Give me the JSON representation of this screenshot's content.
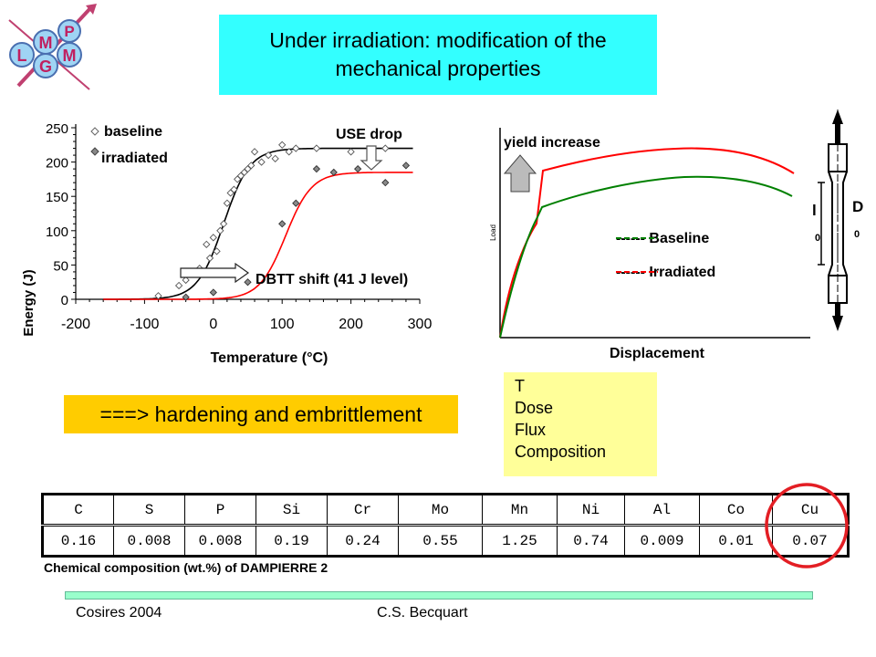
{
  "title": {
    "line1": "Under irradiation: modification of the",
    "line2": "mechanical properties"
  },
  "logo": {
    "letters": [
      "L",
      "M",
      "G",
      "P",
      "M"
    ]
  },
  "charpy_chart": {
    "ylabel": "Energy (J)",
    "xlabel": "Temperature (°C)",
    "y_ticks": [
      "0",
      "50",
      "100",
      "150",
      "200",
      "250"
    ],
    "x_ticks": [
      "-200",
      "-100",
      "0",
      "100",
      "200",
      "300"
    ],
    "legend": [
      "baseline",
      "irradiated"
    ],
    "annotation_use_drop": "USE drop",
    "annotation_dbtt": "DBTT shift (41 J level)"
  },
  "chart_data": [
    {
      "type": "scatter",
      "xlabel": "Temperature (°C)",
      "ylabel": "Energy (J)",
      "xlim": [
        -200,
        300
      ],
      "ylim": [
        0,
        250
      ],
      "grid": false,
      "legend_placement": "top-left",
      "series": [
        {
          "name": "baseline",
          "points": [
            [
              -80,
              5
            ],
            [
              -50,
              20
            ],
            [
              -40,
              28
            ],
            [
              -30,
              38
            ],
            [
              -20,
              45
            ],
            [
              -10,
              80
            ],
            [
              -5,
              60
            ],
            [
              0,
              90
            ],
            [
              5,
              70
            ],
            [
              10,
              100
            ],
            [
              15,
              110
            ],
            [
              20,
              140
            ],
            [
              25,
              155
            ],
            [
              30,
              160
            ],
            [
              35,
              175
            ],
            [
              40,
              180
            ],
            [
              45,
              185
            ],
            [
              50,
              190
            ],
            [
              55,
              195
            ],
            [
              60,
              215
            ],
            [
              70,
              200
            ],
            [
              80,
              210
            ],
            [
              90,
              205
            ],
            [
              100,
              225
            ],
            [
              110,
              215
            ],
            [
              120,
              220
            ],
            [
              150,
              220
            ],
            [
              200,
              215
            ],
            [
              250,
              220
            ]
          ],
          "fit": {
            "lower": 0,
            "upper": 220,
            "midpoint": 15
          }
        },
        {
          "name": "irradiated",
          "points": [
            [
              -40,
              3
            ],
            [
              0,
              10
            ],
            [
              50,
              25
            ],
            [
              100,
              110
            ],
            [
              120,
              140
            ],
            [
              150,
              190
            ],
            [
              175,
              185
            ],
            [
              250,
              170
            ],
            [
              280,
              195
            ],
            [
              210,
              190
            ]
          ],
          "fit": {
            "lower": 0,
            "upper": 185,
            "midpoint": 105
          }
        }
      ]
    },
    {
      "type": "line",
      "xlabel": "Displacement",
      "ylabel": "Load",
      "series": [
        {
          "name": "Baseline",
          "color": "#008000"
        },
        {
          "name": "Irradiated",
          "color": "#ff0000"
        }
      ]
    }
  ],
  "tensile_chart": {
    "ylabel": "Load",
    "xlabel": "Displacement",
    "annotation": "yield increase",
    "legend": [
      "------ Baseline",
      "------ Irradiated"
    ]
  },
  "specimen": {
    "label_l": "l",
    "label_l_sub": "0",
    "label_d": "D",
    "label_d_sub": "0"
  },
  "hardening": "===> hardening and embrittlement",
  "factors": [
    "T",
    "Dose",
    "Flux",
    "Composition"
  ],
  "composition": {
    "headers": [
      "C",
      "S",
      "P",
      "Si",
      "Cr",
      "Mo",
      "Mn",
      "Ni",
      "Al",
      "Co",
      "Cu"
    ],
    "values": [
      "0.16",
      "0.008",
      "0.008",
      "0.19",
      "0.24",
      "0.55",
      "1.25",
      "0.74",
      "0.009",
      "0.01",
      "0.07"
    ],
    "caption": "Chemical composition (wt.%) of DAMPIERRE 2",
    "highlight_color": "#e31e24"
  },
  "footer": {
    "left": "Cosires 2004",
    "right": "C.S. Becquart"
  }
}
